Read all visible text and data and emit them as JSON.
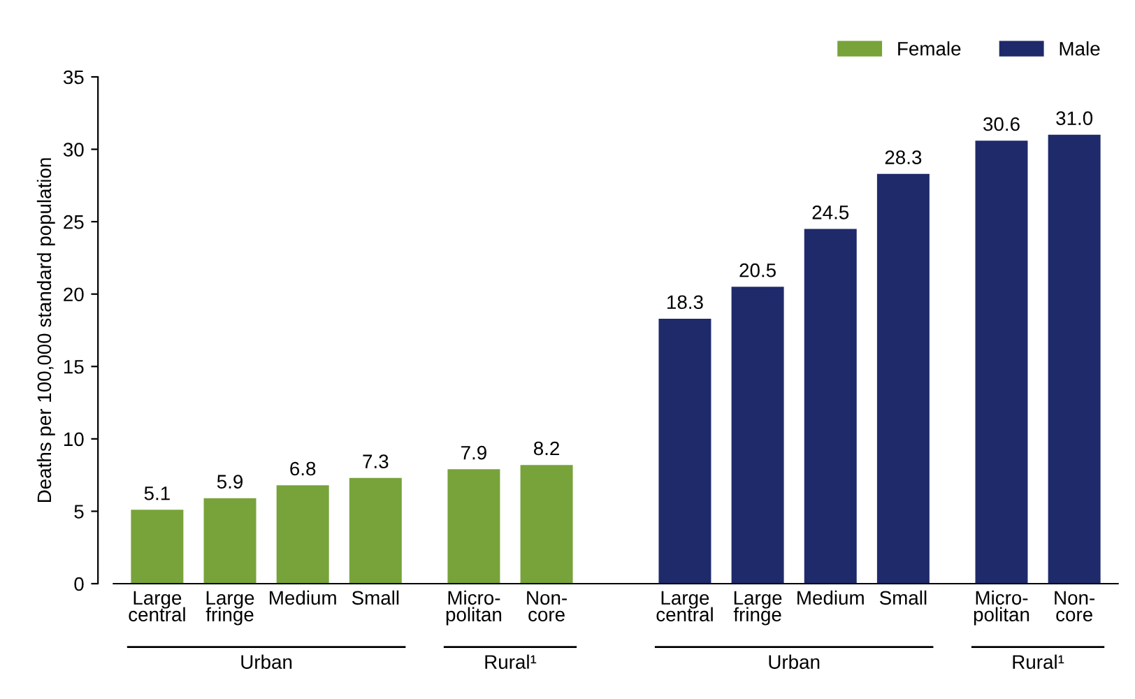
{
  "chart_data": {
    "type": "bar",
    "ylabel": "Deaths per 100,000 standard population",
    "categories": [
      "Large\ncentral",
      "Large\nfringe",
      "Medium",
      "Small",
      "Micro-\npolitan",
      "Non-\ncore",
      "Large\ncentral",
      "Large\nfringe",
      "Medium",
      "Small",
      "Micro-\npolitan",
      "Non-\ncore"
    ],
    "series": [
      {
        "name": "Female",
        "color": "#77a33a",
        "values": [
          5.1,
          5.9,
          6.8,
          7.3,
          7.9,
          8.2,
          null,
          null,
          null,
          null,
          null,
          null
        ],
        "value_labels": [
          "5.1",
          "5.9",
          "6.8",
          "7.3",
          "7.9",
          "8.2",
          null,
          null,
          null,
          null,
          null,
          null
        ]
      },
      {
        "name": "Male",
        "color": "#1f2a6b",
        "values": [
          null,
          null,
          null,
          null,
          null,
          null,
          18.3,
          20.5,
          24.5,
          28.3,
          30.6,
          31.0
        ],
        "value_labels": [
          null,
          null,
          null,
          null,
          null,
          null,
          "18.3",
          "20.5",
          "24.5",
          "28.3",
          "30.6",
          "31.0"
        ]
      }
    ],
    "annotations": [
      "Urban",
      "Rural¹",
      "Urban",
      "Rural¹"
    ],
    "ylim": [
      0,
      35
    ],
    "yticks": [
      0,
      5,
      10,
      15,
      20,
      25,
      30,
      35
    ],
    "grid": false,
    "legend": "top right"
  }
}
